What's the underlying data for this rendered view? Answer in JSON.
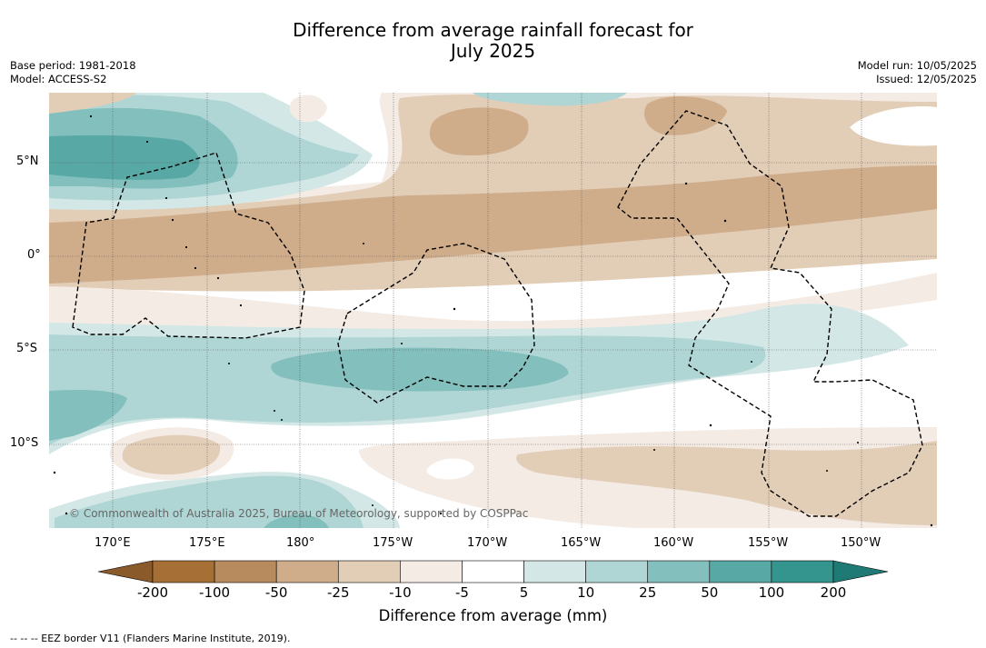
{
  "title_line1": "Difference from average rainfall forecast for",
  "title_line2": "July 2025",
  "base_period": "Base period: 1981-2018",
  "model": "Model: ACCESS-S2",
  "model_run": "Model run: 10/05/2025",
  "issued": "Issued: 12/05/2025",
  "copyright": "© Commonwealth of Australia 2025, Bureau of Meteorology, supported by COSPPac",
  "lat_labels": [
    "5°N",
    "0°",
    "5°S",
    "10°S"
  ],
  "lon_labels": [
    "170°E",
    "175°E",
    "180°",
    "175°W",
    "170°W",
    "165°W",
    "160°W",
    "155°W",
    "150°W"
  ],
  "colorbar": {
    "ticks": [
      "-200",
      "-100",
      "-50",
      "-25",
      "-10",
      "-5",
      "5",
      "10",
      "25",
      "50",
      "100",
      "200"
    ],
    "colors": [
      "#a66f35",
      "#b88b5e",
      "#cfac8a",
      "#e2cdb7",
      "#f4ebe4",
      "#ffffff",
      "#d3e8e6",
      "#afd6d4",
      "#82bfbd",
      "#58a9a6",
      "#34958f"
    ],
    "under_color": "#8b5a2b",
    "over_color": "#1f7a75",
    "label": "Difference from average (mm)"
  },
  "eez_note": "-- -- -- EEZ border V11 (Flanders Marine Institute, 2019)."
}
